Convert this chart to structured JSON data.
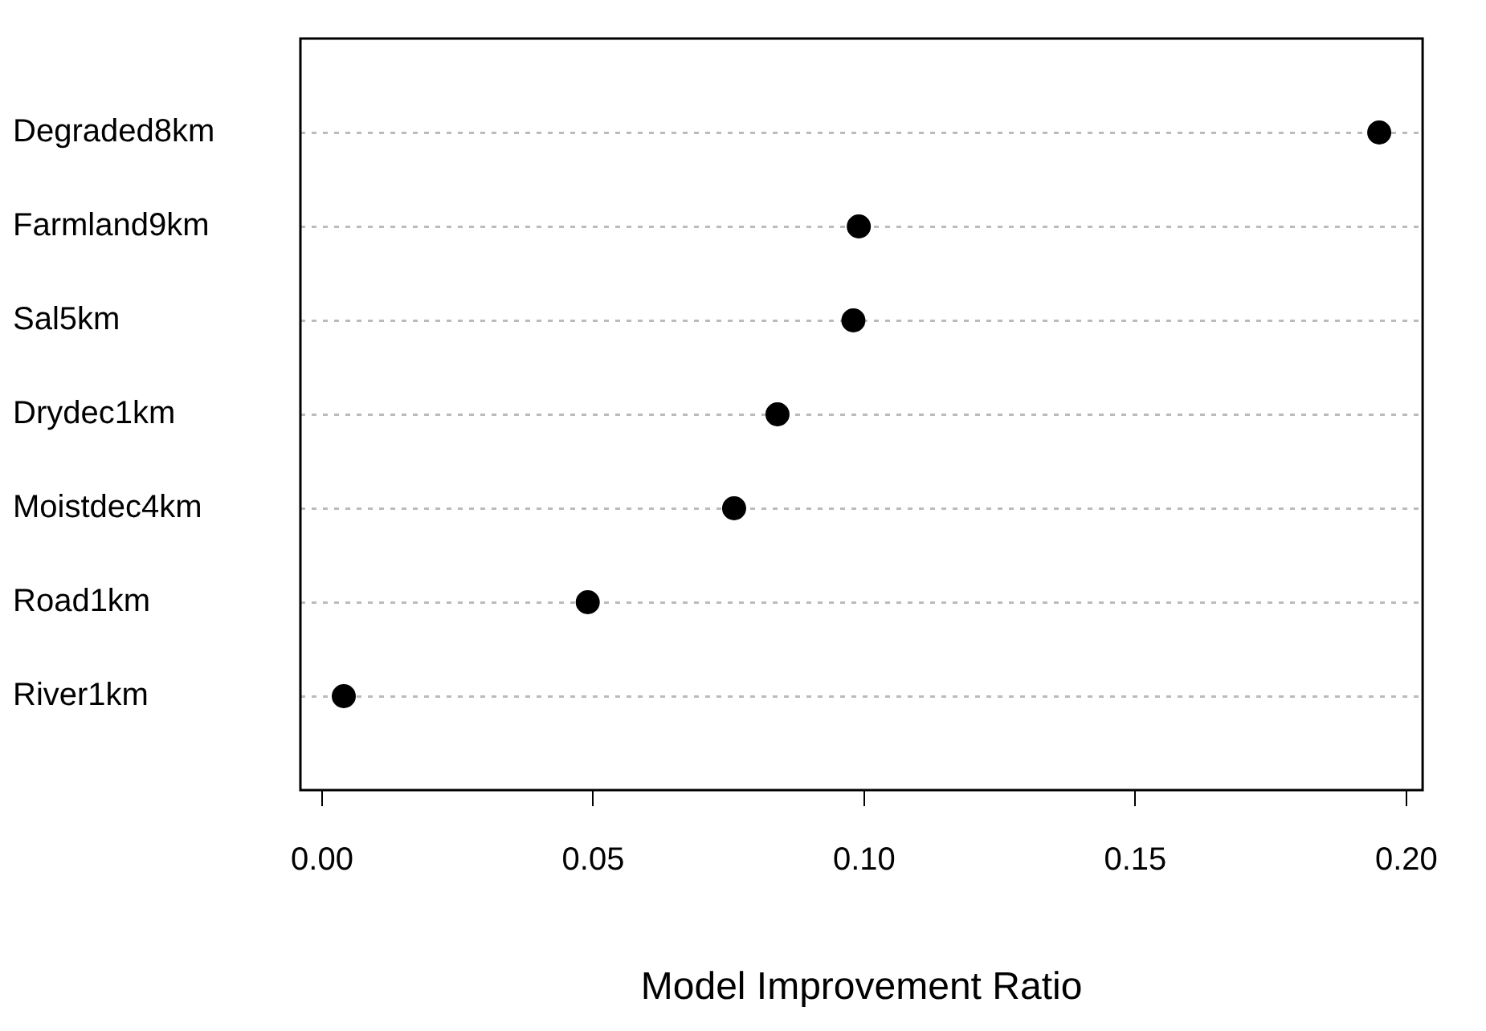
{
  "chart_data": {
    "type": "scatter",
    "orientation": "horizontal",
    "xlabel": "Model Improvement Ratio",
    "categories": [
      "Degraded8km",
      "Farmland9km",
      "Sal5km",
      "Drydec1km",
      "Moistdec4km",
      "Road1km",
      "River1km"
    ],
    "values": [
      0.195,
      0.099,
      0.098,
      0.084,
      0.076,
      0.049,
      0.004
    ],
    "color": "#000000",
    "marker": "circle",
    "grid": "y",
    "xlim": [
      -0.004,
      0.203
    ],
    "xticks": [
      {
        "value": 0,
        "label": "0.00"
      },
      {
        "value": 0.05,
        "label": "0.05"
      },
      {
        "value": 0.1,
        "label": "0.10"
      },
      {
        "value": 0.15,
        "label": "0.15"
      },
      {
        "value": 0.2,
        "label": "0.20"
      }
    ],
    "legend": false
  }
}
